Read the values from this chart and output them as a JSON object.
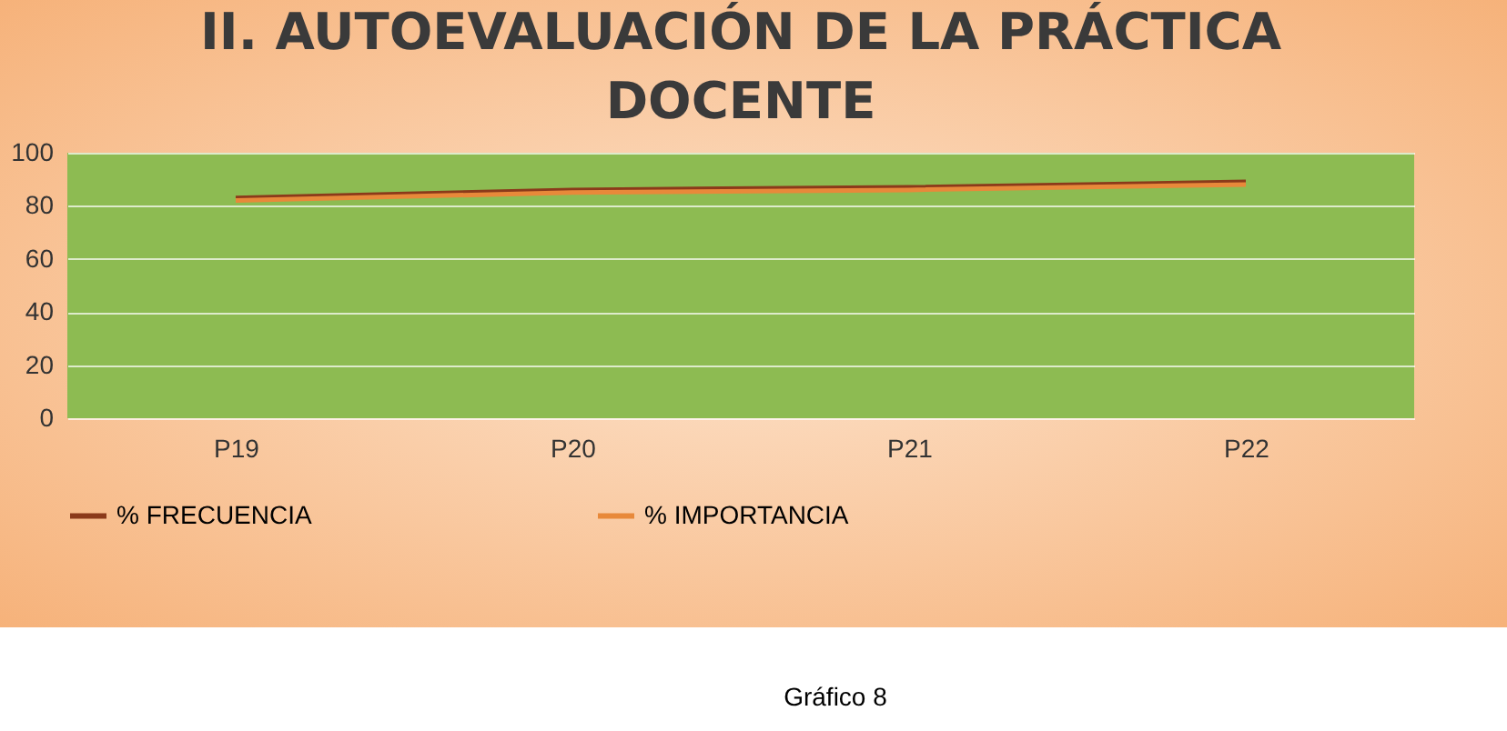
{
  "chart_data": {
    "type": "line",
    "title": "II. AUTOEVALUACIÓN DE LA PRÁCTICA\nDOCENTE",
    "categories": [
      "P19",
      "P20",
      "P21",
      "P22"
    ],
    "series": [
      {
        "name": "% FRECUENCIA",
        "color": "#8b3a1a",
        "values": [
          83,
          86,
          87,
          89
        ]
      },
      {
        "name": "% IMPORTANCIA",
        "color": "#e8893a",
        "values": [
          82,
          85,
          86,
          88
        ]
      }
    ],
    "ylim": [
      0,
      100
    ],
    "yticks": [
      0,
      20,
      40,
      60,
      80,
      100
    ],
    "grid": "y",
    "legend": "bottom",
    "marker": "none",
    "line_style": "solid",
    "annotations": [
      "Gráfico 8"
    ]
  }
}
